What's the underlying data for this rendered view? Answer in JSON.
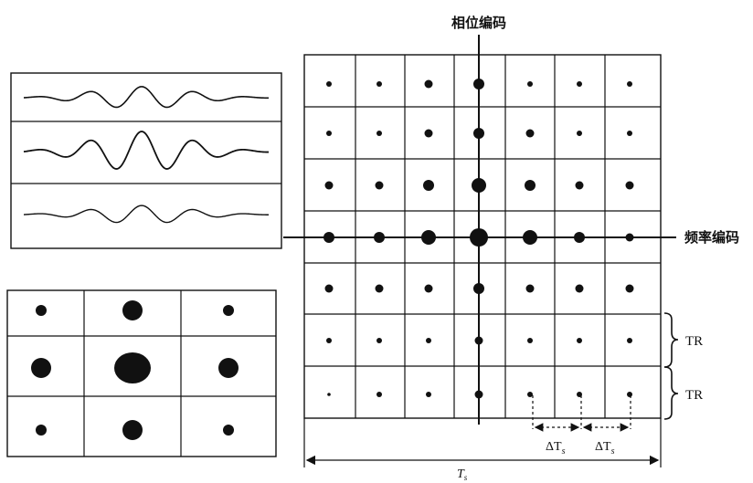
{
  "labels": {
    "phase_axis": "相位编码",
    "frequency_axis": "频率编码",
    "tr_upper": "TR",
    "tr_lower": "TR",
    "delta_ts_1": "ΔT",
    "delta_ts_1_sub": "s",
    "delta_ts_2": "ΔT",
    "delta_ts_2_sub": "s",
    "ts": "T",
    "ts_sub": "s"
  },
  "waveforms": [
    {
      "amplitude": 0.55
    },
    {
      "amplitude": 1.0
    },
    {
      "amplitude": 0.45
    }
  ],
  "small_grid_dots": [
    [
      1,
      2,
      1
    ],
    [
      2,
      3,
      2
    ],
    [
      1,
      2,
      1
    ]
  ],
  "kspace_dots": [
    [
      1,
      1,
      2,
      3,
      1,
      1,
      1
    ],
    [
      1,
      1,
      2,
      3,
      2,
      1,
      1
    ],
    [
      2,
      2,
      3,
      4,
      3,
      2,
      2
    ],
    [
      3,
      3,
      4,
      5,
      4,
      3,
      2
    ],
    [
      2,
      2,
      2,
      3,
      2,
      2,
      2
    ],
    [
      1,
      1,
      1,
      2,
      1,
      1,
      1
    ],
    [
      0,
      1,
      1,
      2,
      1,
      1,
      1
    ]
  ],
  "colors": {
    "ink": "#111111",
    "background": "#ffffff"
  }
}
